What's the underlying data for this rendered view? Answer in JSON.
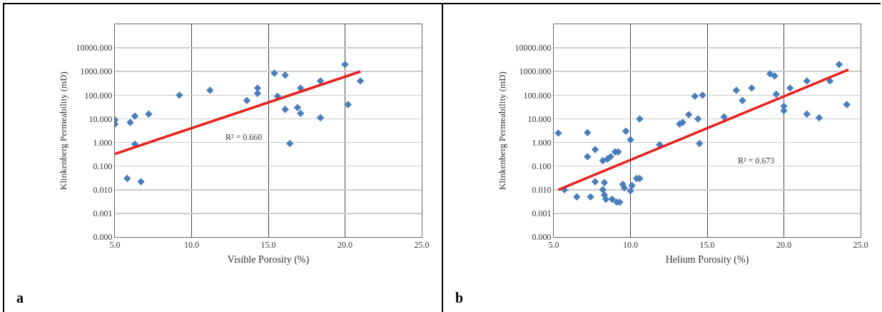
{
  "chart_data": [
    {
      "type": "scatter",
      "xlabel": "Visible Porosity (%)",
      "ylabel": "Klinkenberg Permeability (mD)",
      "log": "y",
      "grid": true,
      "xlim": [
        5,
        25
      ],
      "xticks": [
        {
          "value": 5,
          "label": "5.0"
        },
        {
          "value": 10,
          "label": "10.0"
        },
        {
          "value": 15,
          "label": "15.0"
        },
        {
          "value": 20,
          "label": "20.0"
        },
        {
          "value": 25,
          "label": "25.0"
        }
      ],
      "ylim": [
        0.0001,
        100000
      ],
      "yticks": [
        {
          "value": 0.0001,
          "label": "0.000"
        },
        {
          "value": 0.001,
          "label": "0.001"
        },
        {
          "value": 0.01,
          "label": "0.010"
        },
        {
          "value": 0.1,
          "label": "0.100"
        },
        {
          "value": 1,
          "label": "1.000"
        },
        {
          "value": 10,
          "label": "10.000"
        },
        {
          "value": 100,
          "label": "100.000"
        },
        {
          "value": 1000,
          "label": "1000.000"
        },
        {
          "value": 10000,
          "label": "10000.000"
        }
      ],
      "series": [
        {
          "marker": "diamond",
          "color": "#4a7ebb",
          "x": [
            5.0,
            5.0,
            5.8,
            6.0,
            6.3,
            6.3,
            6.7,
            7.2,
            9.2,
            11.2,
            13.6,
            14.3,
            14.3,
            15.4,
            15.6,
            16.1,
            16.1,
            16.4,
            16.9,
            17.1,
            17.1,
            18.4,
            18.4,
            20.0,
            20.2,
            21.0
          ],
          "values": [
            9,
            6,
            0.03,
            7,
            13,
            0.85,
            0.022,
            16,
            100,
            160,
            60,
            200,
            120,
            850,
            90,
            700,
            25,
            0.9,
            30,
            17,
            200,
            11,
            400,
            2000,
            40,
            400
          ]
        },
        {
          "type": "line",
          "color": "#e8201e",
          "x": [
            5,
            21
          ],
          "values": [
            0.33,
            1000
          ]
        }
      ],
      "annotations": [
        "R² = 0.660",
        "a"
      ]
    },
    {
      "type": "scatter",
      "xlabel": "Helium Porosity (%)",
      "ylabel": "Klinkenberg Permeability (mD)",
      "log": "y",
      "grid": true,
      "xlim": [
        5,
        25
      ],
      "xticks": [
        {
          "value": 5,
          "label": "5.0"
        },
        {
          "value": 10,
          "label": "10.0"
        },
        {
          "value": 15,
          "label": "15.0"
        },
        {
          "value": 20,
          "label": "20.0"
        },
        {
          "value": 25,
          "label": "25.0"
        }
      ],
      "ylim": [
        0.0001,
        100000
      ],
      "yticks": [
        {
          "value": 0.0001,
          "label": "0.000"
        },
        {
          "value": 0.001,
          "label": "0.001"
        },
        {
          "value": 0.01,
          "label": "0.010"
        },
        {
          "value": 0.1,
          "label": "0.100"
        },
        {
          "value": 1,
          "label": "1.000"
        },
        {
          "value": 10,
          "label": "10.000"
        },
        {
          "value": 100,
          "label": "100.000"
        },
        {
          "value": 1000,
          "label": "1000.000"
        },
        {
          "value": 10000,
          "label": "10000.000"
        }
      ],
      "series": [
        {
          "marker": "diamond",
          "color": "#4a7ebb",
          "x": [
            5.3,
            5.7,
            6.5,
            7.2,
            7.2,
            7.4,
            7.7,
            7.7,
            8.2,
            8.3,
            8.2,
            8.3,
            8.4,
            8.5,
            8.7,
            8.8,
            9.0,
            9.2,
            9.1,
            9.3,
            9.5,
            9.6,
            9.7,
            10.0,
            10.0,
            10.1,
            10.4,
            10.6,
            10.6,
            11.9,
            13.2,
            13.4,
            13.8,
            14.2,
            14.4,
            14.5,
            14.7,
            16.1,
            16.9,
            17.3,
            17.9,
            19.1,
            19.4,
            19.5,
            20.0,
            20.0,
            20.4,
            21.5,
            21.5,
            22.3,
            23.0,
            23.6,
            24.1
          ],
          "values": [
            2.5,
            0.01,
            0.005,
            2.6,
            0.25,
            0.005,
            0.5,
            0.022,
            0.17,
            0.02,
            0.01,
            0.006,
            0.004,
            0.2,
            0.25,
            0.004,
            0.4,
            0.4,
            0.003,
            0.003,
            0.017,
            0.012,
            3,
            1.3,
            0.009,
            0.015,
            0.03,
            0.03,
            10,
            0.8,
            6,
            7,
            15,
            90,
            10,
            0.9,
            100,
            12,
            160,
            60,
            200,
            800,
            650,
            110,
            34,
            22,
            200,
            400,
            16,
            11,
            400,
            2000,
            40
          ]
        },
        {
          "type": "line",
          "color": "#e8201e",
          "x": [
            5.3,
            24.2
          ],
          "values": [
            0.01,
            1200
          ]
        }
      ],
      "annotations": [
        "R² = 0.673",
        "b"
      ]
    }
  ]
}
